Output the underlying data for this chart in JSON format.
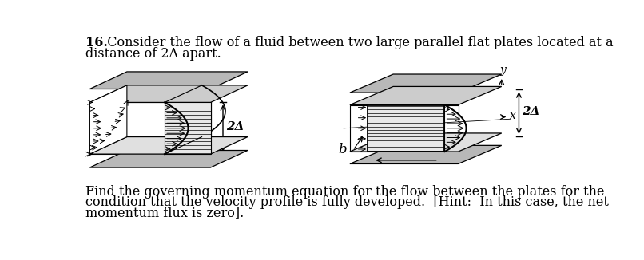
{
  "bg_color": "#ffffff",
  "text_color": "#000000",
  "plate_gray": "#b8b8b8",
  "plate_dark": "#888888",
  "font_size_main": 11.5,
  "title_bold": "16.",
  "title_rest": "  Consider the flow of a fluid between two large parallel flat plates located at a",
  "title_line2": "distance of 2Δ apart.",
  "bottom_line1": "Find the governing momentum equation for the flow between the plates for the",
  "bottom_line2": "condition that the velocity profile is fully developed.  [Hint:  In this case, the net",
  "bottom_line3": "momentum flux is zero]."
}
